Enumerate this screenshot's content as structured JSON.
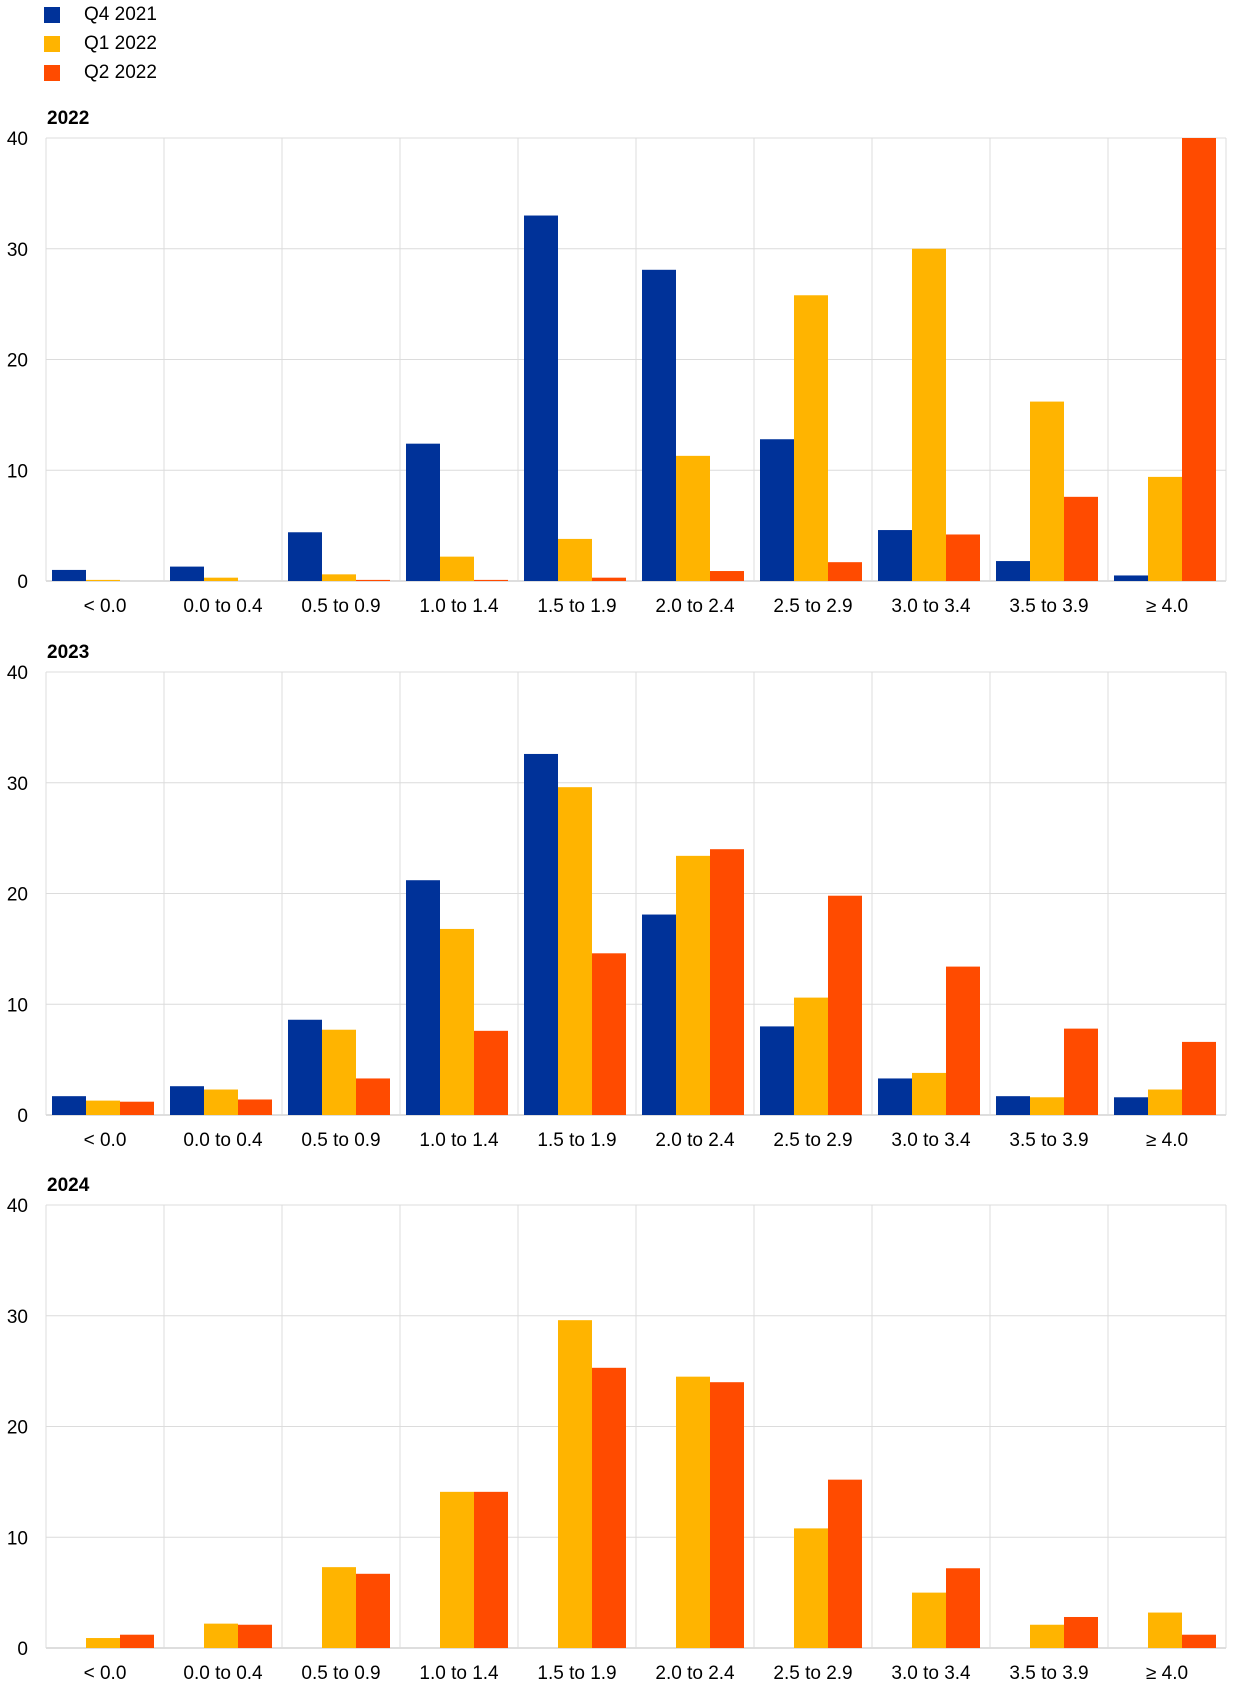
{
  "legend": [
    {
      "label": "Q4 2021",
      "color": "#003299"
    },
    {
      "label": "Q1 2022",
      "color": "#FFB400"
    },
    {
      "label": "Q2 2022",
      "color": "#FF4B00"
    }
  ],
  "chart_data": [
    {
      "type": "bar",
      "title": "2022",
      "categories": [
        "< 0.0",
        "0.0 to 0.4",
        "0.5 to 0.9",
        "1.0 to 1.4",
        "1.5 to 1.9",
        "2.0 to 2.4",
        "2.5 to 2.9",
        "3.0 to 3.4",
        "3.5 to 3.9",
        "≥ 4.0"
      ],
      "ylim": [
        0,
        40
      ],
      "yticks": [
        0,
        10,
        20,
        30,
        40
      ],
      "series": [
        {
          "name": "Q4 2021",
          "values": [
            1.0,
            1.3,
            4.4,
            12.4,
            33.0,
            28.1,
            12.8,
            4.6,
            1.8,
            0.5
          ]
        },
        {
          "name": "Q1 2022",
          "values": [
            0.1,
            0.3,
            0.6,
            2.2,
            3.8,
            11.3,
            25.8,
            30.0,
            16.2,
            9.4
          ]
        },
        {
          "name": "Q2 2022",
          "values": [
            0.0,
            0.0,
            0.1,
            0.1,
            0.3,
            0.9,
            1.7,
            4.2,
            7.6,
            40.0
          ]
        }
      ]
    },
    {
      "type": "bar",
      "title": "2023",
      "categories": [
        "< 0.0",
        "0.0 to 0.4",
        "0.5 to 0.9",
        "1.0 to 1.4",
        "1.5 to 1.9",
        "2.0 to 2.4",
        "2.5 to 2.9",
        "3.0 to 3.4",
        "3.5 to 3.9",
        "≥ 4.0"
      ],
      "ylim": [
        0,
        40
      ],
      "yticks": [
        0,
        10,
        20,
        30,
        40
      ],
      "series": [
        {
          "name": "Q4 2021",
          "values": [
            1.7,
            2.6,
            8.6,
            21.2,
            32.6,
            18.1,
            8.0,
            3.3,
            1.7,
            1.6
          ]
        },
        {
          "name": "Q1 2022",
          "values": [
            1.3,
            2.3,
            7.7,
            16.8,
            29.6,
            23.4,
            10.6,
            3.8,
            1.6,
            2.3
          ]
        },
        {
          "name": "Q2 2022",
          "values": [
            1.2,
            1.4,
            3.3,
            7.6,
            14.6,
            24.0,
            19.8,
            13.4,
            7.8,
            6.6
          ]
        }
      ]
    },
    {
      "type": "bar",
      "title": "2024",
      "categories": [
        "< 0.0",
        "0.0 to 0.4",
        "0.5 to 0.9",
        "1.0 to 1.4",
        "1.5 to 1.9",
        "2.0 to 2.4",
        "2.5 to 2.9",
        "3.0 to 3.4",
        "3.5 to 3.9",
        "≥ 4.0"
      ],
      "ylim": [
        0,
        40
      ],
      "yticks": [
        0,
        10,
        20,
        30,
        40
      ],
      "series": [
        {
          "name": "Q4 2021",
          "values": [
            null,
            null,
            null,
            null,
            null,
            null,
            null,
            null,
            null,
            null
          ]
        },
        {
          "name": "Q1 2022",
          "values": [
            0.9,
            2.2,
            7.3,
            14.1,
            29.6,
            24.5,
            10.8,
            5.0,
            2.1,
            3.2
          ]
        },
        {
          "name": "Q2 2022",
          "values": [
            1.2,
            2.1,
            6.7,
            14.1,
            25.3,
            24.0,
            15.2,
            7.2,
            2.8,
            1.2
          ]
        }
      ]
    }
  ]
}
